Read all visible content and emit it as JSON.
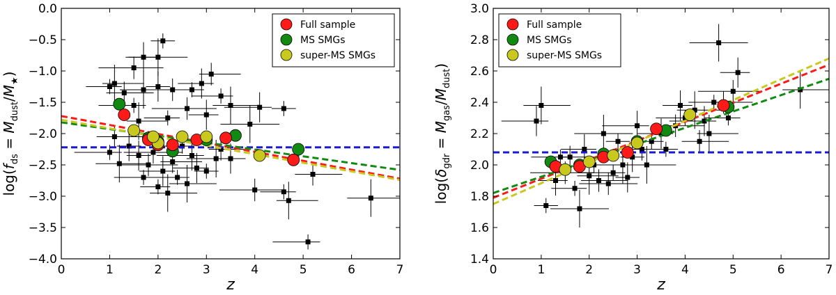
{
  "chart_data": [
    {
      "type": "scatter",
      "xlabel": "z",
      "ylabel": "log(f_ds = M_dust / M_★)",
      "ylabel_parts": {
        "lhs": "log(",
        "f": "f",
        "fsub": "ds",
        "eq": " = ",
        "num": "M",
        "numsub": "dust",
        "slash": "/",
        "den": "M",
        "densub": "★",
        "rhs": ")"
      },
      "xlim": [
        0,
        7
      ],
      "ylim": [
        -4.0,
        0.0
      ],
      "xticks": [
        "0",
        "1",
        "2",
        "3",
        "4",
        "5",
        "6",
        "7"
      ],
      "yticks": [
        "−4.0",
        "−3.5",
        "−3.0",
        "−2.5",
        "−2.0",
        "−1.5",
        "−1.0",
        "−0.5",
        "0.0"
      ],
      "xtick_values": [
        0,
        1,
        2,
        3,
        4,
        5,
        6,
        7
      ],
      "ytick_values": [
        -4.0,
        -3.5,
        -3.0,
        -2.5,
        -2.0,
        -1.5,
        -1.0,
        -0.5,
        0.0
      ],
      "legend": {
        "placement": "top-right",
        "entries": [
          {
            "label": "Full sample",
            "color": "#ff1a1a"
          },
          {
            "label": "MS SMGs",
            "color": "#128a12"
          },
          {
            "label": "super-MS SMGs",
            "color": "#c8c81e"
          }
        ]
      },
      "hline": {
        "y": -2.22,
        "color": "#1a1ad6"
      },
      "fits": [
        {
          "name": "Full sample",
          "color": "#ff1a1a",
          "x": [
            0,
            7
          ],
          "y": [
            -1.72,
            -2.72
          ]
        },
        {
          "name": "MS SMGs",
          "color": "#128a12",
          "x": [
            0,
            7
          ],
          "y": [
            -1.82,
            -2.58
          ]
        },
        {
          "name": "super-MS SMGs",
          "color": "#c8c81e",
          "x": [
            0,
            7
          ],
          "y": [
            -1.78,
            -2.74
          ]
        }
      ],
      "full_sample": [
        [
          1.3,
          -1.7
        ],
        [
          1.8,
          -2.1
        ],
        [
          2.0,
          -2.18
        ],
        [
          2.3,
          -2.18
        ],
        [
          2.8,
          -2.1
        ],
        [
          3.4,
          -2.07
        ],
        [
          4.8,
          -2.42
        ]
      ],
      "ms_smgs": [
        [
          1.2,
          -1.53
        ],
        [
          1.8,
          -2.07
        ],
        [
          2.0,
          -2.13
        ],
        [
          2.3,
          -2.28
        ],
        [
          3.0,
          -2.1
        ],
        [
          3.6,
          -2.03
        ],
        [
          4.9,
          -2.25
        ]
      ],
      "super_ms_smgs": [
        [
          1.5,
          -1.95
        ],
        [
          2.0,
          -2.15
        ],
        [
          2.5,
          -2.05
        ],
        [
          3.0,
          -2.05
        ],
        [
          4.1,
          -2.35
        ],
        [
          1.9,
          -2.05
        ]
      ],
      "sources": [
        [
          2.1,
          -0.52,
          0.0,
          0.0,
          0.0,
          0.0
        ],
        [
          2.0,
          -0.78,
          0.1,
          0.0,
          0.05,
          0.0
        ],
        [
          1.7,
          -0.78,
          0.2,
          0.0,
          0.3,
          0.0
        ],
        [
          1.5,
          -0.95,
          0.15,
          0.0,
          0.35,
          0.0
        ],
        [
          1.0,
          -1.25,
          0.2,
          0.0,
          0.5,
          0.2
        ],
        [
          1.1,
          -1.2,
          0.0,
          0.0,
          0.0,
          0.0
        ],
        [
          1.3,
          -1.35,
          0.0,
          0.0,
          0.0,
          0.0
        ],
        [
          1.5,
          -1.55,
          0.0,
          0.0,
          0.0,
          0.0
        ],
        [
          1.7,
          -1.3,
          0.0,
          0.0,
          0.0,
          0.0
        ],
        [
          2.0,
          -1.25,
          0.3,
          0.0,
          0.2,
          0.0
        ],
        [
          2.3,
          -1.3,
          0.0,
          0.0,
          0.0,
          0.0
        ],
        [
          2.7,
          -1.3,
          0.0,
          0.0,
          0.0,
          0.0
        ],
        [
          2.9,
          -1.2,
          0.6,
          0.0,
          0.0,
          0.0
        ],
        [
          3.1,
          -1.05,
          0.0,
          0.0,
          0.0,
          0.0
        ],
        [
          3.3,
          -1.4,
          0.0,
          0.0,
          0.0,
          0.0
        ],
        [
          3.5,
          -1.55,
          0.0,
          0.0,
          0.0,
          0.0
        ],
        [
          4.1,
          -1.58,
          0.0,
          0.0,
          0.0,
          0.0
        ],
        [
          4.6,
          -1.6,
          0.0,
          0.0,
          0.0,
          0.0
        ],
        [
          3.9,
          -1.85,
          0.0,
          0.0,
          0.0,
          0.0
        ],
        [
          3.0,
          -1.7,
          0.0,
          0.0,
          0.0,
          0.0
        ],
        [
          2.6,
          -1.6,
          0.0,
          0.0,
          0.0,
          0.0
        ],
        [
          2.2,
          -1.75,
          0.0,
          0.0,
          0.0,
          0.0
        ],
        [
          1.6,
          -1.8,
          0.0,
          0.0,
          0.0,
          0.0
        ],
        [
          1.1,
          -2.05,
          0.0,
          0.0,
          0.0,
          0.0
        ],
        [
          1.0,
          -2.3,
          0.0,
          0.0,
          0.0,
          0.0
        ],
        [
          1.2,
          -2.48,
          0.0,
          0.0,
          0.0,
          0.0
        ],
        [
          1.6,
          -2.35,
          0.0,
          0.0,
          0.0,
          0.0
        ],
        [
          1.8,
          -2.5,
          0.0,
          0.0,
          0.0,
          0.0
        ],
        [
          2.0,
          -2.85,
          0.0,
          0.0,
          0.0,
          0.0
        ],
        [
          2.1,
          -2.6,
          0.0,
          0.0,
          0.0,
          0.0
        ],
        [
          2.3,
          -2.45,
          0.0,
          0.0,
          0.0,
          0.0
        ],
        [
          2.4,
          -2.7,
          0.0,
          0.0,
          0.0,
          0.0
        ],
        [
          2.6,
          -2.8,
          0.0,
          0.0,
          0.0,
          0.0
        ],
        [
          2.7,
          -2.35,
          0.0,
          0.0,
          0.0,
          0.0
        ],
        [
          3.0,
          -2.6,
          0.0,
          0.0,
          0.0,
          0.0
        ],
        [
          3.2,
          -2.4,
          0.0,
          0.0,
          0.0,
          0.0
        ],
        [
          3.5,
          -2.4,
          0.0,
          0.0,
          0.0,
          0.0
        ],
        [
          4.0,
          -2.9,
          0.0,
          0.0,
          0.0,
          0.0
        ],
        [
          4.6,
          -2.93,
          0.0,
          0.0,
          0.0,
          0.0
        ],
        [
          4.7,
          -3.07,
          0.0,
          0.0,
          0.0,
          0.0
        ],
        [
          5.2,
          -2.65,
          0.0,
          0.0,
          0.0,
          0.0
        ],
        [
          5.1,
          -3.73,
          0.0,
          0.0,
          0.0,
          0.0
        ],
        [
          6.4,
          -3.03,
          0.0,
          0.0,
          0.0,
          0.0
        ],
        [
          1.4,
          -2.2,
          0.0,
          0.0,
          0.0,
          0.0
        ],
        [
          1.9,
          -2.3,
          0.0,
          0.0,
          0.0,
          0.0
        ],
        [
          2.5,
          -2.2,
          0.0,
          0.0,
          0.0,
          0.0
        ],
        [
          2.8,
          -2.55,
          0.0,
          0.0,
          0.0,
          0.0
        ],
        [
          3.3,
          -2.25,
          0.0,
          0.0,
          0.0,
          0.0
        ],
        [
          1.7,
          -2.7,
          0.0,
          0.0,
          0.0,
          0.0
        ],
        [
          2.2,
          -2.95,
          0.0,
          0.0,
          0.0,
          0.0
        ]
      ]
    },
    {
      "type": "scatter",
      "xlabel": "z",
      "ylabel": "log(δ_gdr = M_gas / M_dust)",
      "ylabel_parts": {
        "lhs": "log(",
        "f": "δ",
        "fsub": "gdr",
        "eq": " = ",
        "num": "M",
        "numsub": "gas",
        "slash": "/",
        "den": "M",
        "densub": "dust",
        "rhs": ")"
      },
      "xlim": [
        0,
        7
      ],
      "ylim": [
        1.4,
        3.0
      ],
      "xticks": [
        "0",
        "1",
        "2",
        "3",
        "4",
        "5",
        "6",
        "7"
      ],
      "yticks": [
        "1.4",
        "1.6",
        "1.8",
        "2.0",
        "2.2",
        "2.4",
        "2.6",
        "2.8",
        "3.0"
      ],
      "xtick_values": [
        0,
        1,
        2,
        3,
        4,
        5,
        6,
        7
      ],
      "ytick_values": [
        1.4,
        1.6,
        1.8,
        2.0,
        2.2,
        2.4,
        2.6,
        2.8,
        3.0
      ],
      "legend": {
        "placement": "top-left",
        "entries": [
          {
            "label": "Full sample",
            "color": "#ff1a1a"
          },
          {
            "label": "MS SMGs",
            "color": "#128a12"
          },
          {
            "label": "super-MS SMGs",
            "color": "#c8c81e"
          }
        ]
      },
      "hline": {
        "y": 2.08,
        "color": "#1a1ad6"
      },
      "fits": [
        {
          "name": "Full sample",
          "color": "#ff1a1a",
          "x": [
            0,
            7
          ],
          "y": [
            1.79,
            2.64
          ]
        },
        {
          "name": "MS SMGs",
          "color": "#128a12",
          "x": [
            0,
            7
          ],
          "y": [
            1.82,
            2.55
          ]
        },
        {
          "name": "super-MS SMGs",
          "color": "#c8c81e",
          "x": [
            0,
            7
          ],
          "y": [
            1.75,
            2.68
          ]
        }
      ],
      "full_sample": [
        [
          1.3,
          1.99
        ],
        [
          1.8,
          1.99
        ],
        [
          2.3,
          2.05
        ],
        [
          2.8,
          2.08
        ],
        [
          3.4,
          2.23
        ],
        [
          4.8,
          2.38
        ]
      ],
      "ms_smgs": [
        [
          1.2,
          2.02
        ],
        [
          1.8,
          2.0
        ],
        [
          2.3,
          2.07
        ],
        [
          3.0,
          2.15
        ],
        [
          3.6,
          2.22
        ],
        [
          4.9,
          2.37
        ]
      ],
      "super_ms_smgs": [
        [
          1.5,
          1.97
        ],
        [
          2.0,
          2.02
        ],
        [
          2.5,
          2.06
        ],
        [
          3.0,
          2.14
        ],
        [
          4.1,
          2.32
        ]
      ],
      "sources": [
        [
          1.0,
          2.38,
          0.0,
          0.0,
          0.0,
          0.0
        ],
        [
          0.9,
          2.28,
          0.0,
          0.0,
          0.0,
          0.0
        ],
        [
          1.1,
          1.74,
          0.0,
          0.0,
          0.0,
          0.0
        ],
        [
          1.8,
          1.72,
          0.0,
          0.0,
          0.0,
          0.0
        ],
        [
          1.3,
          1.9,
          0.0,
          0.0,
          0.0,
          0.0
        ],
        [
          1.5,
          1.95,
          0.0,
          0.0,
          0.0,
          0.0
        ],
        [
          1.7,
          1.85,
          0.0,
          0.0,
          0.0,
          0.0
        ],
        [
          2.0,
          1.93,
          0.0,
          0.0,
          0.0,
          0.0
        ],
        [
          2.2,
          1.9,
          0.0,
          0.0,
          0.0,
          0.0
        ],
        [
          2.5,
          1.95,
          0.0,
          0.0,
          0.0,
          0.0
        ],
        [
          2.7,
          2.0,
          0.0,
          0.0,
          0.0,
          0.0
        ],
        [
          2.9,
          2.05,
          0.0,
          0.0,
          0.0,
          0.0
        ],
        [
          3.1,
          2.1,
          0.0,
          0.0,
          0.0,
          0.0
        ],
        [
          3.3,
          2.15,
          0.0,
          0.0,
          0.0,
          0.0
        ],
        [
          3.5,
          2.2,
          0.0,
          0.0,
          0.0,
          0.0
        ],
        [
          3.8,
          2.25,
          0.0,
          0.0,
          0.0,
          0.0
        ],
        [
          4.0,
          2.3,
          0.0,
          0.0,
          0.0,
          0.0
        ],
        [
          4.2,
          2.35,
          0.0,
          0.0,
          0.0,
          0.0
        ],
        [
          4.4,
          2.28,
          0.0,
          0.0,
          0.0,
          0.0
        ],
        [
          4.6,
          2.4,
          0.0,
          0.0,
          0.0,
          0.0
        ],
        [
          4.7,
          2.78,
          0.0,
          0.0,
          0.0,
          0.0
        ],
        [
          5.1,
          2.59,
          0.0,
          0.0,
          0.0,
          0.0
        ],
        [
          5.0,
          2.47,
          0.0,
          0.0,
          0.0,
          0.0
        ],
        [
          4.9,
          2.3,
          0.0,
          0.0,
          0.0,
          0.0
        ],
        [
          4.5,
          2.2,
          0.0,
          0.0,
          0.0,
          0.0
        ],
        [
          4.3,
          2.15,
          0.0,
          0.0,
          0.0,
          0.0
        ],
        [
          3.6,
          2.1,
          0.0,
          0.0,
          0.0,
          0.0
        ],
        [
          3.2,
          2.0,
          0.0,
          0.0,
          0.0,
          0.0
        ],
        [
          2.8,
          1.92,
          0.0,
          0.0,
          0.0,
          0.0
        ],
        [
          2.4,
          1.88,
          0.0,
          0.0,
          0.0,
          0.0
        ],
        [
          2.1,
          2.0,
          0.0,
          0.0,
          0.0,
          0.0
        ],
        [
          1.9,
          2.1,
          0.0,
          0.0,
          0.0,
          0.0
        ],
        [
          1.6,
          2.05,
          0.0,
          0.0,
          0.0,
          0.0
        ],
        [
          1.4,
          2.05,
          0.0,
          0.0,
          0.0,
          0.0
        ],
        [
          6.4,
          2.48,
          0.0,
          0.0,
          0.0,
          0.0
        ],
        [
          3.0,
          2.25,
          0.0,
          0.0,
          0.0,
          0.0
        ],
        [
          2.6,
          2.15,
          0.0,
          0.0,
          0.0,
          0.0
        ],
        [
          2.3,
          2.2,
          0.0,
          0.0,
          0.0,
          0.0
        ],
        [
          3.9,
          2.38,
          0.0,
          0.0,
          0.0,
          0.0
        ],
        [
          4.8,
          2.4,
          0.0,
          0.0,
          0.0,
          0.0
        ]
      ]
    }
  ]
}
